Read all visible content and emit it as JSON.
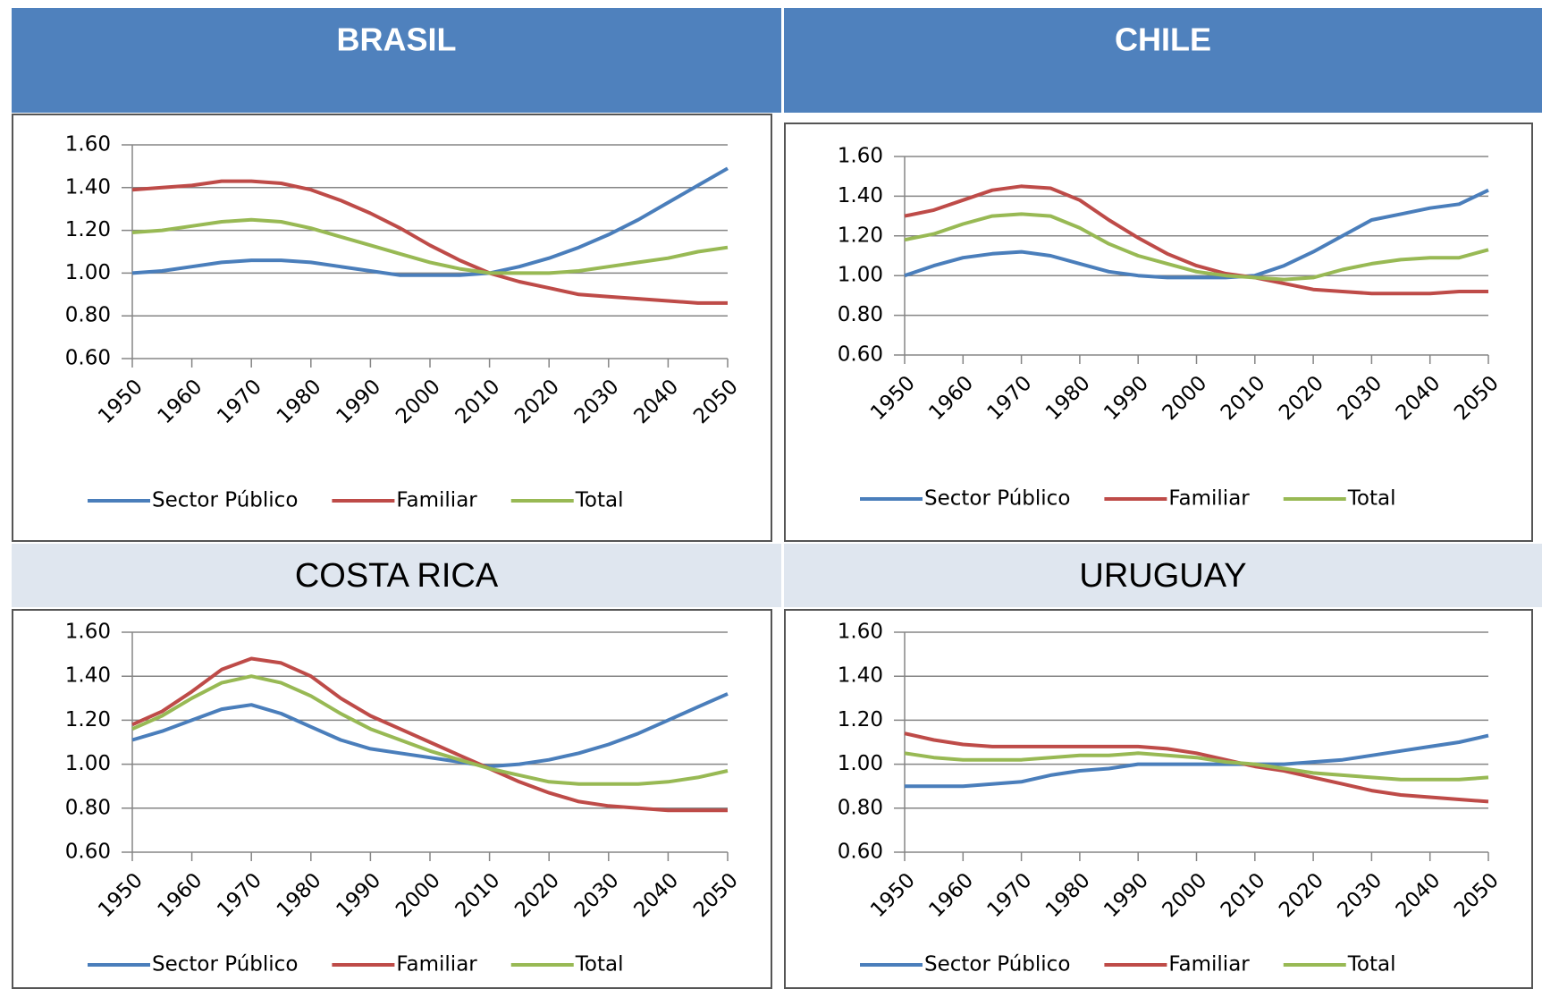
{
  "chart_data": [
    {
      "type": "line",
      "title": "BRASIL",
      "x": [
        1950,
        1955,
        1960,
        1965,
        1970,
        1975,
        1980,
        1985,
        1990,
        1995,
        2000,
        2005,
        2010,
        2015,
        2020,
        2025,
        2030,
        2035,
        2040,
        2045,
        2050
      ],
      "xlim": [
        1950,
        2050
      ],
      "xticks": [
        1950,
        1960,
        1970,
        1980,
        1990,
        2000,
        2010,
        2020,
        2030,
        2040,
        2050
      ],
      "ylim": [
        0.6,
        1.6
      ],
      "yticks": [
        {
          "value": 0.6,
          "label": "0.60"
        },
        {
          "value": 0.8,
          "label": "0.80"
        },
        {
          "value": 1.0,
          "label": "1.00"
        },
        {
          "value": 1.2,
          "label": "1.20"
        },
        {
          "value": 1.4,
          "label": "1.40"
        },
        {
          "value": 1.6,
          "label": "1.60"
        }
      ],
      "grid": true,
      "legend": "bottom",
      "series": [
        {
          "name": "Sector Público",
          "color": "#4a7ebb",
          "values": [
            1.0,
            1.01,
            1.03,
            1.05,
            1.06,
            1.06,
            1.05,
            1.03,
            1.01,
            0.99,
            0.99,
            0.99,
            1.0,
            1.03,
            1.07,
            1.12,
            1.18,
            1.25,
            1.33,
            1.41,
            1.49
          ]
        },
        {
          "name": "Familiar",
          "color": "#be4b48",
          "values": [
            1.39,
            1.4,
            1.41,
            1.43,
            1.43,
            1.42,
            1.39,
            1.34,
            1.28,
            1.21,
            1.13,
            1.06,
            1.0,
            0.96,
            0.93,
            0.9,
            0.89,
            0.88,
            0.87,
            0.86,
            0.86
          ]
        },
        {
          "name": "Total",
          "color": "#98b954",
          "values": [
            1.19,
            1.2,
            1.22,
            1.24,
            1.25,
            1.24,
            1.21,
            1.17,
            1.13,
            1.09,
            1.05,
            1.02,
            1.0,
            1.0,
            1.0,
            1.01,
            1.03,
            1.05,
            1.07,
            1.1,
            1.12
          ]
        }
      ]
    },
    {
      "type": "line",
      "title": "CHILE",
      "x": [
        1950,
        1955,
        1960,
        1965,
        1970,
        1975,
        1980,
        1985,
        1990,
        1995,
        2000,
        2005,
        2010,
        2015,
        2020,
        2025,
        2030,
        2035,
        2040,
        2045,
        2050
      ],
      "xlim": [
        1950,
        2050
      ],
      "xticks": [
        1950,
        1960,
        1970,
        1980,
        1990,
        2000,
        2010,
        2020,
        2030,
        2040,
        2050
      ],
      "ylim": [
        0.6,
        1.6
      ],
      "yticks": [
        {
          "value": 0.6,
          "label": "0.60"
        },
        {
          "value": 0.8,
          "label": "0.80"
        },
        {
          "value": 1.0,
          "label": "1.00"
        },
        {
          "value": 1.2,
          "label": "1.20"
        },
        {
          "value": 1.4,
          "label": "1.40"
        },
        {
          "value": 1.6,
          "label": "1.60"
        }
      ],
      "grid": true,
      "legend": "bottom",
      "series": [
        {
          "name": "Sector Público",
          "color": "#4a7ebb",
          "values": [
            1.0,
            1.05,
            1.09,
            1.11,
            1.12,
            1.1,
            1.06,
            1.02,
            1.0,
            0.99,
            0.99,
            0.99,
            1.0,
            1.05,
            1.12,
            1.2,
            1.28,
            1.31,
            1.34,
            1.36,
            1.43
          ]
        },
        {
          "name": "Familiar",
          "color": "#be4b48",
          "values": [
            1.3,
            1.33,
            1.38,
            1.43,
            1.45,
            1.44,
            1.38,
            1.28,
            1.19,
            1.11,
            1.05,
            1.01,
            0.99,
            0.96,
            0.93,
            0.92,
            0.91,
            0.91,
            0.91,
            0.92,
            0.92
          ]
        },
        {
          "name": "Total",
          "color": "#98b954",
          "values": [
            1.18,
            1.21,
            1.26,
            1.3,
            1.31,
            1.3,
            1.24,
            1.16,
            1.1,
            1.06,
            1.02,
            1.0,
            0.99,
            0.98,
            0.99,
            1.03,
            1.06,
            1.08,
            1.09,
            1.09,
            1.13
          ]
        }
      ]
    },
    {
      "type": "line",
      "title": "COSTA RICA",
      "x": [
        1950,
        1955,
        1960,
        1965,
        1970,
        1975,
        1980,
        1985,
        1990,
        1995,
        2000,
        2005,
        2010,
        2015,
        2020,
        2025,
        2030,
        2035,
        2040,
        2045,
        2050
      ],
      "xlim": [
        1950,
        2050
      ],
      "xticks": [
        1950,
        1960,
        1970,
        1980,
        1990,
        2000,
        2010,
        2020,
        2030,
        2040,
        2050
      ],
      "ylim": [
        0.6,
        1.6
      ],
      "yticks": [
        {
          "value": 0.6,
          "label": "0.60"
        },
        {
          "value": 0.8,
          "label": "0.80"
        },
        {
          "value": 1.0,
          "label": "1.00"
        },
        {
          "value": 1.2,
          "label": "1.20"
        },
        {
          "value": 1.4,
          "label": "1.40"
        },
        {
          "value": 1.6,
          "label": "1.60"
        }
      ],
      "grid": true,
      "legend": "bottom",
      "series": [
        {
          "name": "Sector Público",
          "color": "#4a7ebb",
          "values": [
            1.11,
            1.15,
            1.2,
            1.25,
            1.27,
            1.23,
            1.17,
            1.11,
            1.07,
            1.05,
            1.03,
            1.01,
            0.99,
            1.0,
            1.02,
            1.05,
            1.09,
            1.14,
            1.2,
            1.26,
            1.32
          ]
        },
        {
          "name": "Familiar",
          "color": "#be4b48",
          "values": [
            1.18,
            1.24,
            1.33,
            1.43,
            1.48,
            1.46,
            1.4,
            1.3,
            1.22,
            1.16,
            1.1,
            1.04,
            0.98,
            0.92,
            0.87,
            0.83,
            0.81,
            0.8,
            0.79,
            0.79,
            0.79
          ]
        },
        {
          "name": "Total",
          "color": "#98b954",
          "values": [
            1.16,
            1.22,
            1.3,
            1.37,
            1.4,
            1.37,
            1.31,
            1.23,
            1.16,
            1.11,
            1.06,
            1.02,
            0.98,
            0.95,
            0.92,
            0.91,
            0.91,
            0.91,
            0.92,
            0.94,
            0.97
          ]
        }
      ]
    },
    {
      "type": "line",
      "title": "URUGUAY",
      "x": [
        1950,
        1955,
        1960,
        1965,
        1970,
        1975,
        1980,
        1985,
        1990,
        1995,
        2000,
        2005,
        2010,
        2015,
        2020,
        2025,
        2030,
        2035,
        2040,
        2045,
        2050
      ],
      "xlim": [
        1950,
        2050
      ],
      "xticks": [
        1950,
        1960,
        1970,
        1980,
        1990,
        2000,
        2010,
        2020,
        2030,
        2040,
        2050
      ],
      "ylim": [
        0.6,
        1.6
      ],
      "yticks": [
        {
          "value": 0.6,
          "label": "0.60"
        },
        {
          "value": 0.8,
          "label": "0.80"
        },
        {
          "value": 1.0,
          "label": "1.00"
        },
        {
          "value": 1.2,
          "label": "1.20"
        },
        {
          "value": 1.4,
          "label": "1.40"
        },
        {
          "value": 1.6,
          "label": "1.60"
        }
      ],
      "grid": true,
      "legend": "bottom",
      "series": [
        {
          "name": "Sector Público",
          "color": "#4a7ebb",
          "values": [
            0.9,
            0.9,
            0.9,
            0.91,
            0.92,
            0.95,
            0.97,
            0.98,
            1.0,
            1.0,
            1.0,
            1.0,
            1.0,
            1.0,
            1.01,
            1.02,
            1.04,
            1.06,
            1.08,
            1.1,
            1.13
          ]
        },
        {
          "name": "Familiar",
          "color": "#be4b48",
          "values": [
            1.14,
            1.11,
            1.09,
            1.08,
            1.08,
            1.08,
            1.08,
            1.08,
            1.08,
            1.07,
            1.05,
            1.02,
            0.99,
            0.97,
            0.94,
            0.91,
            0.88,
            0.86,
            0.85,
            0.84,
            0.83
          ]
        },
        {
          "name": "Total",
          "color": "#98b954",
          "values": [
            1.05,
            1.03,
            1.02,
            1.02,
            1.02,
            1.03,
            1.04,
            1.04,
            1.05,
            1.04,
            1.03,
            1.01,
            1.0,
            0.98,
            0.96,
            0.95,
            0.94,
            0.93,
            0.93,
            0.93,
            0.94
          ]
        }
      ]
    }
  ]
}
